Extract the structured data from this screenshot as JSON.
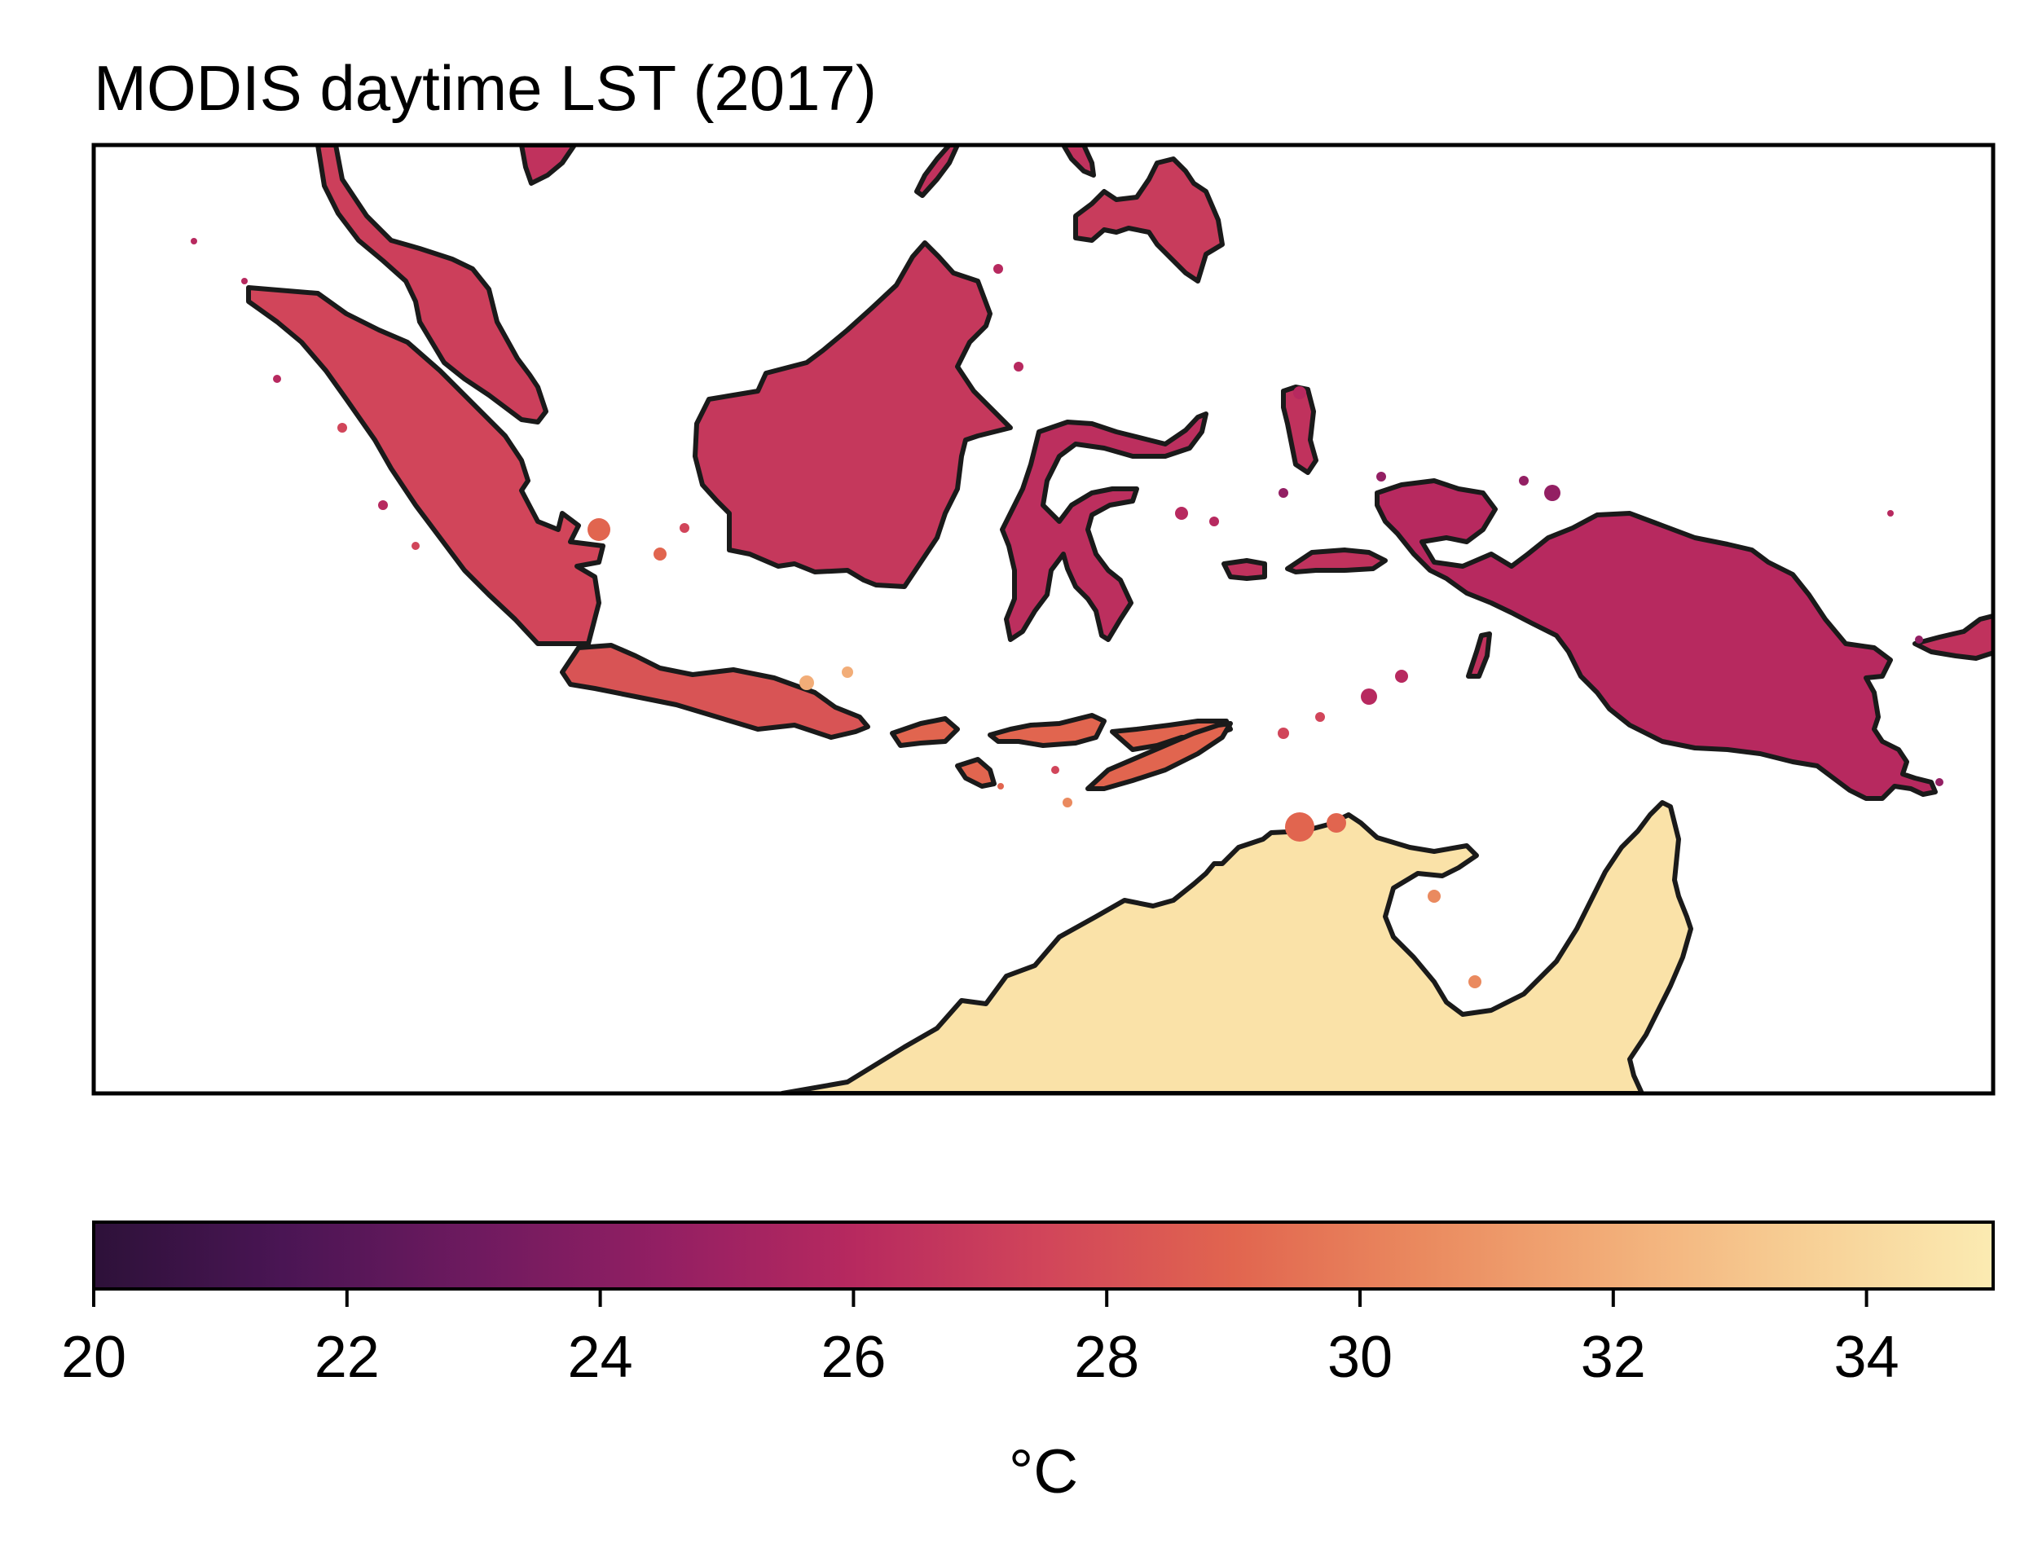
{
  "title": "MODIS daytime LST (2017)",
  "colorbar": {
    "label": "°C",
    "min": 20,
    "max": 35,
    "ticks": [
      "20",
      "22",
      "24",
      "26",
      "28",
      "30",
      "32",
      "34"
    ],
    "colormap": "spectral-magma",
    "stops": [
      "#2d1139",
      "#4a1554",
      "#6e1a5f",
      "#931f63",
      "#b7295f",
      "#d1455a",
      "#e1654f",
      "#ea8a5f",
      "#f2ad78",
      "#f7cf95",
      "#fbebb2"
    ]
  },
  "map": {
    "region": "Maritime Southeast Asia and northern Australia",
    "land_outline_color": "#1a1a1a",
    "background": "#ffffff",
    "landmasses": [
      {
        "name": "Sumatra",
        "mean_lst_c": 27.5
      },
      {
        "name": "Malay Peninsula",
        "mean_lst_c": 27.2
      },
      {
        "name": "Borneo",
        "mean_lst_c": 26.8
      },
      {
        "name": "Java",
        "mean_lst_c": 28.2
      },
      {
        "name": "Sulawesi",
        "mean_lst_c": 26.3
      },
      {
        "name": "Lesser Sunda Islands",
        "mean_lst_c": 29.0
      },
      {
        "name": "New Guinea",
        "mean_lst_c": 26.0
      },
      {
        "name": "Northern Australia",
        "mean_lst_c": 34.5
      },
      {
        "name": "Philippines (southern)",
        "mean_lst_c": 27.0
      }
    ]
  }
}
